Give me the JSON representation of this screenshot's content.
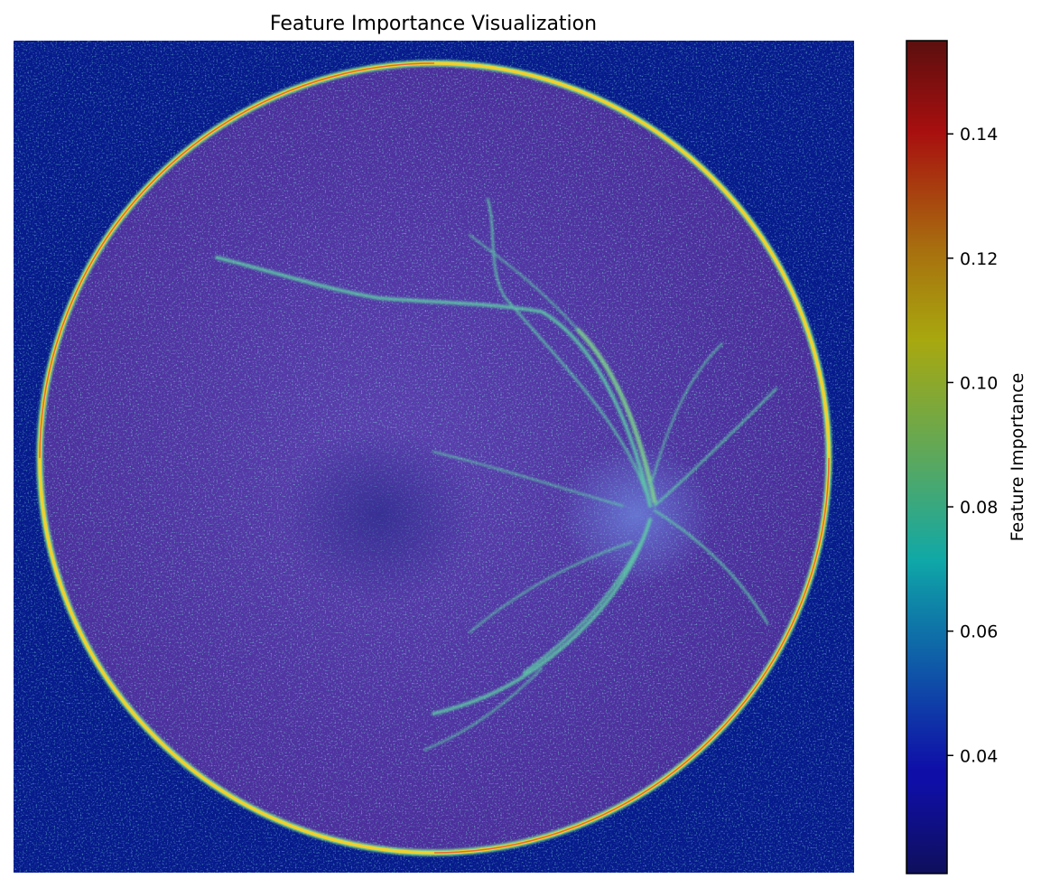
{
  "chart_data": {
    "type": "heatmap",
    "title": "Feature Importance Visualization",
    "axes_visible": false,
    "colormap": "jet",
    "overlay_alpha": 0.6,
    "colorbar": {
      "label": "Feature Importance",
      "vmin": 0.021,
      "vmax": 0.155,
      "ticks": [
        {
          "value": 0.04,
          "label": "0.04"
        },
        {
          "value": 0.06,
          "label": "0.06"
        },
        {
          "value": 0.08,
          "label": "0.08"
        },
        {
          "value": 0.1,
          "label": "0.10"
        },
        {
          "value": 0.12,
          "label": "0.12"
        },
        {
          "value": 0.14,
          "label": "0.14"
        }
      ]
    },
    "regions": {
      "background_level": 0.03,
      "fundus_disc_level": 0.045,
      "disc_rim_level": 0.13,
      "vessel_level": 0.085,
      "optic_disc_level": 0.09
    }
  },
  "colors": {
    "background": "#ffffff",
    "text": "#000000"
  }
}
